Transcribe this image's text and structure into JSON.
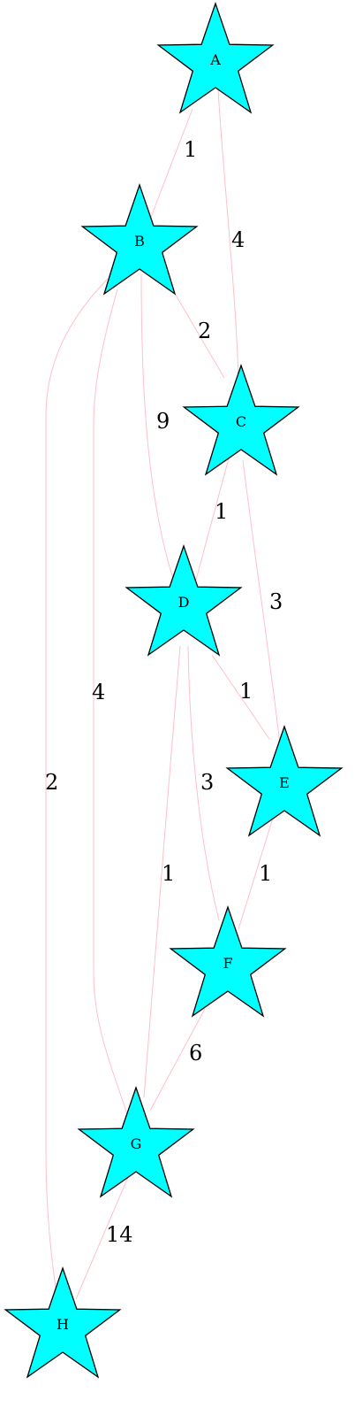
{
  "graph": {
    "node_fill": "#00ffff",
    "node_stroke": "#000000",
    "edge_color": "#ffc0cb",
    "nodes": [
      {
        "id": "A",
        "label": "A"
      },
      {
        "id": "B",
        "label": "B"
      },
      {
        "id": "C",
        "label": "C"
      },
      {
        "id": "D",
        "label": "D"
      },
      {
        "id": "E",
        "label": "E"
      },
      {
        "id": "F",
        "label": "F"
      },
      {
        "id": "G",
        "label": "G"
      },
      {
        "id": "H",
        "label": "H"
      }
    ],
    "edges": [
      {
        "from": "A",
        "to": "B",
        "label": "1"
      },
      {
        "from": "A",
        "to": "C",
        "label": "4"
      },
      {
        "from": "B",
        "to": "C",
        "label": "2"
      },
      {
        "from": "B",
        "to": "D",
        "label": "9"
      },
      {
        "from": "B",
        "to": "G",
        "label": "4"
      },
      {
        "from": "B",
        "to": "H",
        "label": "2"
      },
      {
        "from": "C",
        "to": "D",
        "label": "1"
      },
      {
        "from": "C",
        "to": "E",
        "label": "3"
      },
      {
        "from": "D",
        "to": "E",
        "label": "1"
      },
      {
        "from": "D",
        "to": "F",
        "label": "3"
      },
      {
        "from": "D",
        "to": "G",
        "label": "1"
      },
      {
        "from": "E",
        "to": "F",
        "label": "1"
      },
      {
        "from": "F",
        "to": "G",
        "label": "6"
      },
      {
        "from": "G",
        "to": "H",
        "label": "14"
      }
    ]
  }
}
